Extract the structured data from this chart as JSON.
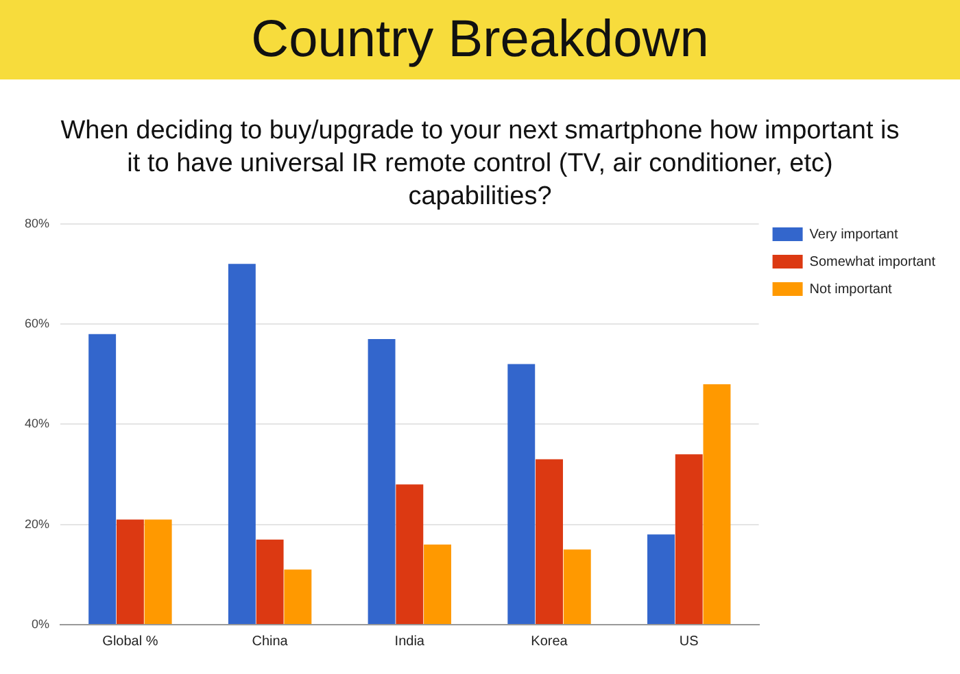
{
  "chart_data": {
    "type": "bar",
    "title": "Country Breakdown",
    "subtitle": "When deciding to buy/upgrade to your next smartphone how important is it to have universal IR remote control (TV, air conditioner, etc) capabilities?",
    "categories": [
      "Global %",
      "China",
      "India",
      "Korea",
      "US"
    ],
    "series": [
      {
        "name": "Very important",
        "color": "#3366cc",
        "values": [
          58,
          72,
          57,
          52,
          18
        ]
      },
      {
        "name": "Somewhat important",
        "color": "#dc3912",
        "values": [
          21,
          17,
          28,
          33,
          34
        ]
      },
      {
        "name": "Not important",
        "color": "#ff9900",
        "values": [
          21,
          11,
          16,
          15,
          48
        ]
      }
    ],
    "ylim": [
      0,
      80
    ],
    "yticks": [
      {
        "value": 0,
        "label": "0%"
      },
      {
        "value": 20,
        "label": "20%"
      },
      {
        "value": 40,
        "label": "40%"
      },
      {
        "value": 60,
        "label": "60%"
      },
      {
        "value": 80,
        "label": "80%"
      }
    ],
    "grid": "y",
    "legend": "top right"
  }
}
